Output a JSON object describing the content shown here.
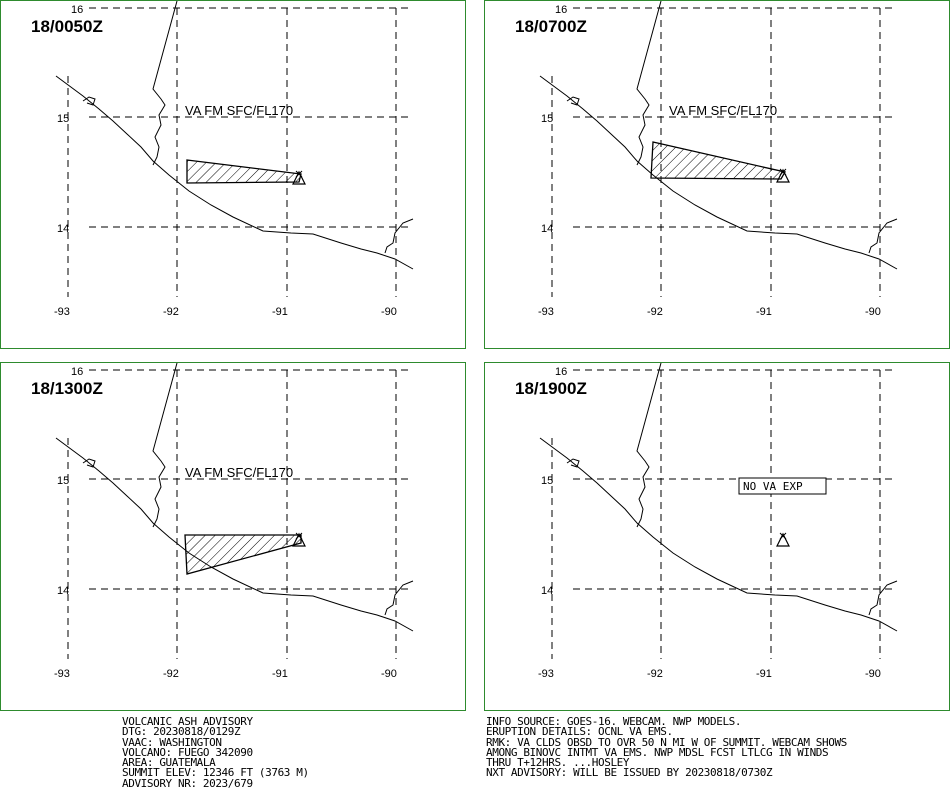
{
  "panels": [
    {
      "title": "18/0050Z",
      "va_label": "VA FM SFC/FL170",
      "has_ash": true,
      "nova": ""
    },
    {
      "title": "18/0700Z",
      "va_label": "VA FM SFC/FL170",
      "has_ash": true,
      "nova": ""
    },
    {
      "title": "18/1300Z",
      "va_label": "VA FM SFC/FL170",
      "has_ash": true,
      "nova": ""
    },
    {
      "title": "18/1900Z",
      "va_label": "",
      "has_ash": false,
      "nova": "NO VA EXP"
    }
  ],
  "axes": {
    "lat_labels": [
      "16",
      "15",
      "14"
    ],
    "lon_labels": [
      "-93",
      "-92",
      "-91",
      "-90"
    ]
  },
  "advisory_left": [
    "VOLCANIC ASH ADVISORY",
    "DTG: 20230818/0129Z",
    "VAAC: WASHINGTON",
    "VOLCANO: FUEGO 342090",
    "AREA: GUATEMALA",
    "SUMMIT ELEV: 12346 FT (3763 M)",
    "ADVISORY NR: 2023/679"
  ],
  "advisory_right": [
    "INFO SOURCE: GOES-16. WEBCAM. NWP MODELS.",
    "ERUPTION DETAILS: OCNL VA EMS.",
    "RMK: VA CLDS OBSD TO OVR 50 N MI W OF SUMMIT. WEBCAM SHOWS",
    "AMONG BINOVC INTMT VA EMS. NWP MDSL FCST LTLCG IN WINDS",
    "THRU T+12HRS. ...HOSLEY",
    "NXT ADVISORY: WILL BE ISSUED BY 20230818/0730Z"
  ],
  "colors": {
    "panel_border": "#2e8b2e",
    "lines": "#000000"
  }
}
